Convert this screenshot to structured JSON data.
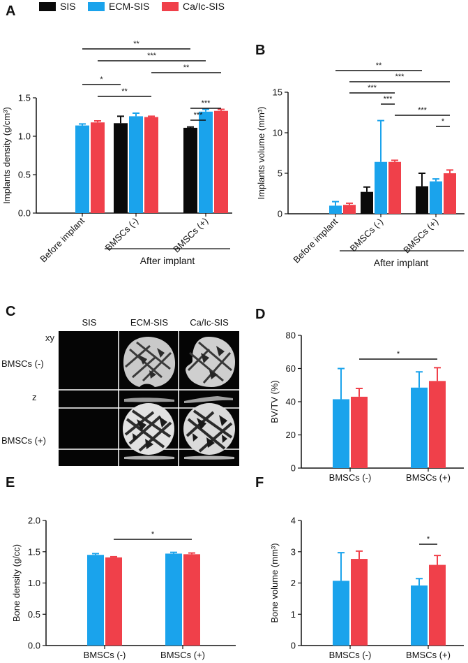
{
  "legend": {
    "entries": [
      {
        "label": "SIS",
        "color": "#0a0a0a"
      },
      {
        "label": "ECM-SIS",
        "color": "#1aa3ec"
      },
      {
        "label": "Ca/Ic-SIS",
        "color": "#f0404a"
      }
    ]
  },
  "chart_data": [
    {
      "panel": "A",
      "type": "bar",
      "ylabel": "Implants density (g/cm³)",
      "ylim": [
        0,
        1.5
      ],
      "yticks": [
        "0.0",
        "0.5",
        "1.0",
        "1.5"
      ],
      "categories": [
        "Before implant",
        "BMSCs (-)",
        "BMSCs (+)"
      ],
      "group_label": "After implant",
      "series": [
        {
          "name": "SIS",
          "values": [
            null,
            1.17,
            1.11
          ],
          "errors": [
            null,
            0.09,
            0.01
          ]
        },
        {
          "name": "ECM-SIS",
          "values": [
            1.14,
            1.26,
            1.32
          ],
          "errors": [
            0.02,
            0.04,
            0.03
          ]
        },
        {
          "name": "Ca/Ic-SIS",
          "values": [
            1.18,
            1.25,
            1.33
          ],
          "errors": [
            0.02,
            0.01,
            0.02
          ]
        }
      ],
      "significance": [
        {
          "from": [
            0,
            1
          ],
          "to": [
            2,
            0
          ],
          "label": "**"
        },
        {
          "from": [
            0,
            2
          ],
          "to": [
            2,
            1
          ],
          "label": "***"
        },
        {
          "from": [
            1,
            2
          ],
          "to": [
            2,
            2
          ],
          "label": "**"
        },
        {
          "from": [
            0,
            1
          ],
          "to": [
            1,
            0
          ],
          "label": "*"
        },
        {
          "from": [
            0,
            2
          ],
          "to": [
            1,
            2
          ],
          "label": "**"
        },
        {
          "from": [
            2,
            0
          ],
          "to": [
            2,
            2
          ],
          "label": "***"
        },
        {
          "from": [
            2,
            0
          ],
          "to": [
            2,
            1
          ],
          "label": "***"
        }
      ]
    },
    {
      "panel": "B",
      "type": "bar",
      "ylabel": "Implants volume (mm³)",
      "ylim": [
        0,
        15
      ],
      "yticks": [
        "0",
        "5",
        "10",
        "15"
      ],
      "categories": [
        "Before implant",
        "BMSCs (-)",
        "BMSCs (+)"
      ],
      "group_label": "After implant",
      "series": [
        {
          "name": "SIS",
          "values": [
            null,
            2.7,
            3.4
          ],
          "errors": [
            null,
            0.6,
            1.6
          ]
        },
        {
          "name": "ECM-SIS",
          "values": [
            1.0,
            6.4,
            4.0
          ],
          "errors": [
            0.5,
            5.1,
            0.3
          ]
        },
        {
          "name": "Ca/Ic-SIS",
          "values": [
            1.1,
            6.4,
            5.0
          ],
          "errors": [
            0.2,
            0.2,
            0.4
          ]
        }
      ],
      "significance": [
        {
          "from": [
            0,
            1
          ],
          "to": [
            2,
            0
          ],
          "label": "**"
        },
        {
          "from": [
            0,
            2
          ],
          "to": [
            2,
            2
          ],
          "label": "***"
        },
        {
          "from": [
            0,
            2
          ],
          "to": [
            1,
            2
          ],
          "label": "***"
        },
        {
          "from": [
            1,
            1
          ],
          "to": [
            1,
            2
          ],
          "label": "***"
        },
        {
          "from": [
            1,
            2
          ],
          "to": [
            2,
            2
          ],
          "label": "***"
        },
        {
          "from": [
            2,
            1
          ],
          "to": [
            2,
            2
          ],
          "label": "*"
        }
      ]
    },
    {
      "panel": "D",
      "type": "bar",
      "ylabel": "BV/TV (%)",
      "ylim": [
        0,
        80
      ],
      "yticks": [
        "0",
        "20",
        "40",
        "60",
        "80"
      ],
      "categories": [
        "BMSCs (-)",
        "BMSCs (+)"
      ],
      "series": [
        {
          "name": "ECM-SIS",
          "values": [
            41.5,
            48.5
          ],
          "errors": [
            18.5,
            9.5
          ]
        },
        {
          "name": "Ca/Ic-SIS",
          "values": [
            43.0,
            52.5
          ],
          "errors": [
            5.0,
            8.0
          ]
        }
      ],
      "significance": [
        {
          "from": [
            0,
            1
          ],
          "to": [
            1,
            1
          ],
          "label": "*"
        }
      ]
    },
    {
      "panel": "E",
      "type": "bar",
      "ylabel": "Bone density (g/cc)",
      "ylim": [
        0,
        2.0
      ],
      "yticks": [
        "0.0",
        "0.5",
        "1.0",
        "1.5",
        "2.0"
      ],
      "categories": [
        "BMSCs (-)",
        "BMSCs (+)"
      ],
      "series": [
        {
          "name": "ECM-SIS",
          "values": [
            1.45,
            1.47
          ],
          "errors": [
            0.02,
            0.02
          ]
        },
        {
          "name": "Ca/Ic-SIS",
          "values": [
            1.41,
            1.46
          ],
          "errors": [
            0.01,
            0.02
          ]
        }
      ],
      "significance": [
        {
          "from": [
            0,
            1
          ],
          "to": [
            1,
            1
          ],
          "label": "*"
        }
      ]
    },
    {
      "panel": "F",
      "type": "bar",
      "ylabel": "Bone volume (mm³)",
      "ylim": [
        0,
        4
      ],
      "yticks": [
        "0",
        "1",
        "2",
        "3",
        "4"
      ],
      "categories": [
        "BMSCs (-)",
        "BMSCs (+)"
      ],
      "series": [
        {
          "name": "ECM-SIS",
          "values": [
            2.07,
            1.92
          ],
          "errors": [
            0.9,
            0.22
          ]
        },
        {
          "name": "Ca/Ic-SIS",
          "values": [
            2.77,
            2.58
          ],
          "errors": [
            0.25,
            0.3
          ]
        }
      ],
      "significance": [
        {
          "from": [
            1,
            0
          ],
          "to": [
            1,
            1
          ],
          "label": "*"
        }
      ]
    }
  ],
  "panel_c": {
    "letter": "C",
    "columns": [
      "SIS",
      "ECM-SIS",
      "Ca/Ic-SIS"
    ],
    "rows": [
      "BMSCs (-)",
      "BMSCs (+)"
    ],
    "view_labels": [
      "xy",
      "z"
    ]
  },
  "letters": [
    "A",
    "B",
    "D",
    "E",
    "F"
  ]
}
